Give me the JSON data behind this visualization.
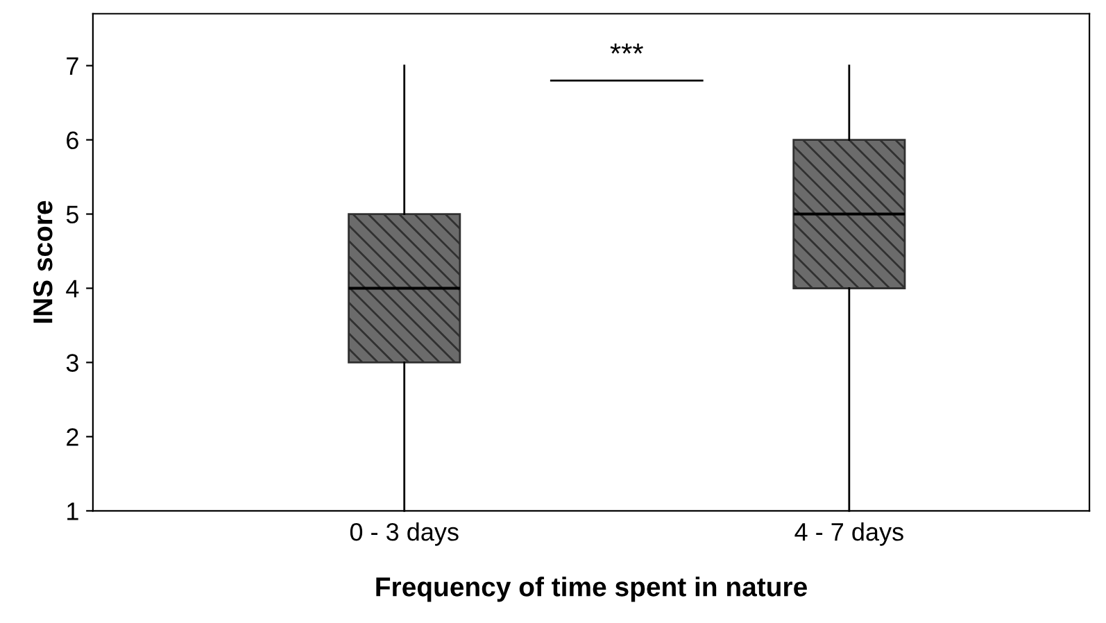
{
  "chart_data": {
    "type": "box",
    "xlabel": "Frequency of time spent in nature",
    "ylabel": "INS score",
    "categories": [
      "0 - 3 days",
      "4 - 7 days"
    ],
    "boxes": [
      {
        "low": 1,
        "q1": 3,
        "median": 4,
        "q3": 5,
        "high": 7
      },
      {
        "low": 1,
        "q1": 4,
        "median": 5,
        "q3": 6,
        "high": 7
      }
    ],
    "color": "#303030",
    "ylim": [
      1,
      7.7
    ],
    "yticks": [
      1,
      2,
      3,
      4,
      5,
      6,
      7
    ],
    "grid": false,
    "annotations": [
      "***"
    ]
  }
}
